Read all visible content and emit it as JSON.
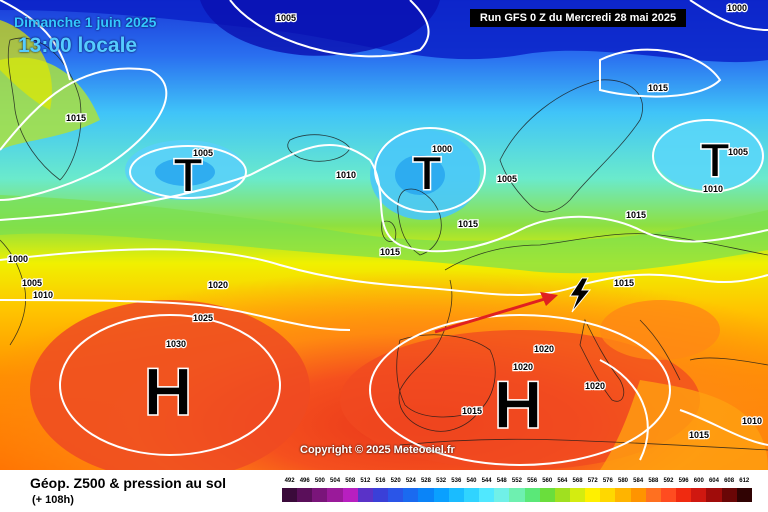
{
  "header": {
    "date": "Dimanche 1 juin 2025",
    "time": "13:00 locale",
    "run": "Run GFS 0 Z du Mercredi 28 mai 2025"
  },
  "copyright": "Copyright © 2025 Meteociel.fr",
  "legend": {
    "title": "Géop. Z500 & pression au sol",
    "subtitle": "(+ 108h)",
    "scale": [
      "492",
      "496",
      "500",
      "504",
      "508",
      "512",
      "516",
      "520",
      "524",
      "528",
      "532",
      "536",
      "540",
      "544",
      "548",
      "552",
      "556",
      "560",
      "564",
      "568",
      "572",
      "576",
      "580",
      "584",
      "588",
      "592",
      "596",
      "600",
      "604",
      "608",
      "612"
    ],
    "scale_colors": [
      "#3a0a3a",
      "#5a0f5a",
      "#7a157a",
      "#9a1a9a",
      "#b81fc0",
      "#5a32c8",
      "#3a40d8",
      "#2a55e8",
      "#1a6af0",
      "#0a84f8",
      "#0aa0ff",
      "#1abcff",
      "#30d4ff",
      "#50e8ff",
      "#70f0e8",
      "#6ef0b0",
      "#5ae878",
      "#6ade3c",
      "#a0e020",
      "#d4ec10",
      "#fff000",
      "#ffd800",
      "#ffb400",
      "#ff9400",
      "#ff7020",
      "#ff4c20",
      "#f02a10",
      "#d01810",
      "#a00c0a",
      "#6a0606",
      "#300303"
    ]
  },
  "pressure_systems": [
    {
      "kind": "low",
      "symbol": "T"
    },
    {
      "kind": "low",
      "symbol": "T"
    },
    {
      "kind": "low",
      "symbol": "T"
    },
    {
      "kind": "high",
      "symbol": "H"
    },
    {
      "kind": "high",
      "symbol": "H"
    }
  ],
  "isobar_labels": [
    "1005",
    "1000",
    "1015",
    "1005",
    "1010",
    "1000",
    "1005",
    "1015",
    "1005",
    "1010",
    "1000",
    "1005",
    "1010",
    "1015",
    "1020",
    "1025",
    "1030",
    "1015",
    "1020",
    "1020",
    "1015",
    "1020",
    "1015",
    "1015",
    "1010",
    "1015"
  ],
  "colors": {
    "arrow": "#e02020",
    "isobar": "#ffffff",
    "system": "#000000"
  }
}
